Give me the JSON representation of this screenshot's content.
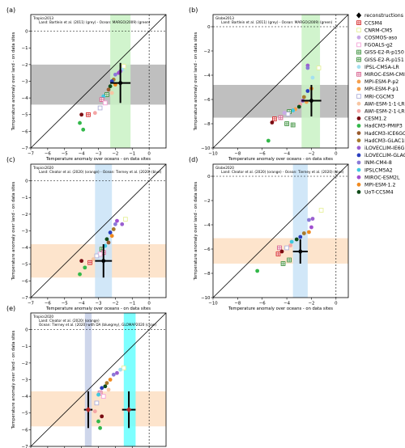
{
  "figure": {
    "background": "#ffffff"
  },
  "chart_data": [
    {
      "type": "scatter",
      "panel_label": "(a)",
      "title": "Tropics2013",
      "subtitle": "Land: Bartlein et al. (2011) (grey) - Ocean: MARGO(2009) (green)",
      "xlabel": "Temperature anomaly over oceans - on data sites",
      "ylabel": "Temperature anomaly over land - on data sites",
      "xlim": [
        -7,
        1
      ],
      "ylim": [
        -7,
        1
      ],
      "xticks": [
        -7,
        -6,
        -5,
        -4,
        -3,
        -2,
        -1,
        0
      ],
      "yticks": [
        -7,
        -6,
        -5,
        -4,
        -3,
        -2,
        -1,
        0
      ],
      "bands": [
        {
          "axis": "y",
          "from": -4.4,
          "to": -2.0,
          "color": "#bfbfbf"
        },
        {
          "axis": "x",
          "from": -2.3,
          "to": -1.1,
          "color": "#c9f2c4"
        }
      ],
      "reconstructions": [
        {
          "x": -1.7,
          "y": -3.1,
          "xerr": 0.6,
          "yerr": 1.2
        }
      ],
      "points": [
        {
          "x": -1.5,
          "y": -2.1,
          "series": "CNRM-CM5"
        },
        {
          "x": -1.6,
          "y": -2.3,
          "series": "IPSL-CM5A-LR"
        },
        {
          "x": -1.7,
          "y": -2.4,
          "series": "iLOVECLIM-IE6G"
        },
        {
          "x": -2.0,
          "y": -2.6,
          "series": "INM-CM4-8"
        },
        {
          "x": -1.8,
          "y": -2.5,
          "series": "MIROC-ESM2L"
        },
        {
          "x": -2.1,
          "y": -2.9,
          "series": "HadCM3-GLAC1D"
        },
        {
          "x": -2.2,
          "y": -3.0,
          "series": "iLOVECLIM-GLAC1D"
        },
        {
          "x": -2.3,
          "y": -3.3,
          "series": "UoT-CCSM4"
        },
        {
          "x": -2.0,
          "y": -3.2,
          "series": "MPI-ESM-1.2"
        },
        {
          "x": -2.4,
          "y": -3.5,
          "series": "HadCM3-ICE6GC"
        },
        {
          "x": -2.2,
          "y": -3.7,
          "series": "AWI-ESM-1-1-LR"
        },
        {
          "x": -2.5,
          "y": -3.8,
          "series": "GISS-E2-R-p151"
        },
        {
          "x": -2.7,
          "y": -3.9,
          "series": "IPSLCM5A2"
        },
        {
          "x": -2.8,
          "y": -4.1,
          "series": "MIROC-ESM-CMIP5"
        },
        {
          "x": -2.6,
          "y": -4.3,
          "series": "FGOALS-g2"
        },
        {
          "x": -2.9,
          "y": -4.6,
          "series": "MRI-CGCM3"
        },
        {
          "x": -3.2,
          "y": -4.9,
          "series": "AWI-ESM-2-1-LR"
        },
        {
          "x": -3.6,
          "y": -5.0,
          "series": "CCSM4"
        },
        {
          "x": -4.0,
          "y": -5.0,
          "series": "CESM1.2"
        },
        {
          "x": -4.1,
          "y": -5.5,
          "series": "HadCM3-PMIP3"
        },
        {
          "x": -3.9,
          "y": -5.9,
          "series": "HadCM3-PMIP3"
        }
      ]
    },
    {
      "type": "scatter",
      "panel_label": "(b)",
      "title": "Globe2013",
      "subtitle": "Land: Bartlein et al. (2011) (grey) - Ocean: MARGO(2009) (green)",
      "xlabel": "Temperature anomaly over oceans - on data sites",
      "ylabel": "Temperature anomaly over land - on data sites",
      "xlim": [
        -10,
        1
      ],
      "ylim": [
        -10,
        1
      ],
      "xticks": [
        -10,
        -8,
        -6,
        -4,
        -2,
        0
      ],
      "yticks": [
        -10,
        -8,
        -6,
        -4,
        -2,
        0
      ],
      "bands": [
        {
          "axis": "y",
          "from": -7.5,
          "to": -4.8,
          "color": "#bfbfbf"
        },
        {
          "axis": "x",
          "from": -2.8,
          "to": -1.3,
          "color": "#c9f2c4"
        }
      ],
      "reconstructions": [
        {
          "x": -2.0,
          "y": -6.1,
          "xerr": 0.8,
          "yerr": 1.3
        }
      ],
      "points": [
        {
          "x": -1.4,
          "y": -3.4,
          "series": "CNRM-CM5"
        },
        {
          "x": -2.3,
          "y": -3.2,
          "series": "iLOVECLIM-IE6G"
        },
        {
          "x": -2.3,
          "y": -3.4,
          "series": "INM-CM4-8"
        },
        {
          "x": -1.9,
          "y": -4.2,
          "series": "IPSL-CM5A-LR"
        },
        {
          "x": -2.0,
          "y": -5.1,
          "series": "MPI-ESM-1.2"
        },
        {
          "x": -2.3,
          "y": -5.3,
          "series": "iLOVECLIM-GLAC1D"
        },
        {
          "x": -2.6,
          "y": -5.8,
          "series": "HadCM3-GLAC1D"
        },
        {
          "x": -2.7,
          "y": -6.1,
          "series": "MIROC-ESM2L"
        },
        {
          "x": -2.4,
          "y": -6.2,
          "series": "MPI-ESM-P-p2"
        },
        {
          "x": -2.9,
          "y": -6.4,
          "series": "AWI-ESM-2-1-LR"
        },
        {
          "x": -3.0,
          "y": -6.6,
          "series": "UoT-CCSM4"
        },
        {
          "x": -3.3,
          "y": -6.8,
          "series": "MPI-ESM-P-p1"
        },
        {
          "x": -3.5,
          "y": -6.9,
          "series": "IPSLCM5A2"
        },
        {
          "x": -3.8,
          "y": -7.0,
          "series": "GISS-E2-R-p150"
        },
        {
          "x": -3.9,
          "y": -7.2,
          "series": "MRI-CGCM3"
        },
        {
          "x": -4.2,
          "y": -7.1,
          "series": "COSMOS-aso"
        },
        {
          "x": -4.5,
          "y": -7.5,
          "series": "MIROC-ESM-CMIP5"
        },
        {
          "x": -5.0,
          "y": -7.6,
          "series": "CCSM4"
        },
        {
          "x": -5.2,
          "y": -7.9,
          "series": "CESM1.2"
        },
        {
          "x": -4.0,
          "y": -8.0,
          "series": "GISS-E2-R-p151"
        },
        {
          "x": -3.5,
          "y": -8.1,
          "series": "GISS-E2-R-p150"
        },
        {
          "x": -5.5,
          "y": -9.4,
          "series": "HadCM3-PMIP3"
        }
      ]
    },
    {
      "type": "scatter",
      "panel_label": "(c)",
      "title": "Tropics2020",
      "subtitle": "Land: Cleator et al. (2020) (orange) - Ocean: Tierney et al. (2020) (blue)",
      "xlabel": "Temperature anomaly over oceans - on data sites",
      "ylabel": "Temperature anomaly over land - on data sites",
      "xlim": [
        -7,
        1
      ],
      "ylim": [
        -7,
        1
      ],
      "xticks": [
        -7,
        -6,
        -5,
        -4,
        -3,
        -2,
        -1,
        0
      ],
      "yticks": [
        -7,
        -6,
        -5,
        -4,
        -3,
        -2,
        -1,
        0
      ],
      "bands": [
        {
          "axis": "y",
          "from": -5.8,
          "to": -3.8,
          "color": "#fde4cc"
        },
        {
          "axis": "x",
          "from": -3.2,
          "to": -2.2,
          "color": "#c9e3f7"
        }
      ],
      "reconstructions": [
        {
          "x": -2.7,
          "y": -4.8,
          "xerr": 0.5,
          "yerr": 1.0
        }
      ],
      "points": [
        {
          "x": -1.4,
          "y": -2.3,
          "series": "CNRM-CM5"
        },
        {
          "x": -1.6,
          "y": -2.6,
          "series": "iLOVECLIM-IE6G"
        },
        {
          "x": -1.9,
          "y": -2.4,
          "series": "MIROC-ESM2L"
        },
        {
          "x": -2.0,
          "y": -2.6,
          "series": "INM-CM4-8"
        },
        {
          "x": -2.1,
          "y": -2.9,
          "series": "HadCM3-GLAC1D"
        },
        {
          "x": -2.3,
          "y": -3.1,
          "series": "iLOVECLIM-GLAC1D"
        },
        {
          "x": -2.2,
          "y": -3.3,
          "series": "MPI-ESM-1.2"
        },
        {
          "x": -2.5,
          "y": -3.5,
          "series": "UoT-CCSM4"
        },
        {
          "x": -2.4,
          "y": -3.7,
          "series": "HadCM3-ICE6GC"
        },
        {
          "x": -2.6,
          "y": -3.9,
          "series": "IPSLCM5A2"
        },
        {
          "x": -2.8,
          "y": -4.1,
          "series": "GISS-E2-R-p151"
        },
        {
          "x": -2.7,
          "y": -4.3,
          "series": "MIROC-ESM-CMIP5"
        },
        {
          "x": -2.9,
          "y": -4.4,
          "series": "FGOALS-g2"
        },
        {
          "x": -3.1,
          "y": -4.5,
          "series": "MRI-CGCM3"
        },
        {
          "x": -3.3,
          "y": -4.7,
          "series": "AWI-ESM-1-1-LR"
        },
        {
          "x": -3.5,
          "y": -4.9,
          "series": "CCSM4"
        },
        {
          "x": -4.0,
          "y": -4.8,
          "series": "CESM1.2"
        },
        {
          "x": -3.8,
          "y": -5.2,
          "series": "HadCM3-PMIP3"
        },
        {
          "x": -4.1,
          "y": -5.6,
          "series": "HadCM3-PMIP3"
        }
      ]
    },
    {
      "type": "scatter",
      "panel_label": "(d)",
      "title": "Globe2020",
      "subtitle": "Land: Cleator et al. (2020) (orange) - Ocean: Tierney et al. (2020) (blue)",
      "xlabel": "Temperature anomaly over oceans - on data sites",
      "ylabel": "Temperature anomaly over land - on data sites",
      "xlim": [
        -10,
        1
      ],
      "ylim": [
        -10,
        1
      ],
      "xticks": [
        -10,
        -8,
        -6,
        -4,
        -2,
        0
      ],
      "yticks": [
        -10,
        -8,
        -6,
        -4,
        -2,
        0
      ],
      "bands": [
        {
          "axis": "y",
          "from": -7.2,
          "to": -5.1,
          "color": "#fde4cc"
        },
        {
          "axis": "x",
          "from": -3.5,
          "to": -2.3,
          "color": "#c9e3f7"
        }
      ],
      "reconstructions": [
        {
          "x": -2.9,
          "y": -6.2,
          "xerr": 0.6,
          "yerr": 1.0
        }
      ],
      "points": [
        {
          "x": -1.2,
          "y": -2.8,
          "series": "CNRM-CM5"
        },
        {
          "x": -1.9,
          "y": -3.5,
          "series": "iLOVECLIM-IE6G"
        },
        {
          "x": -2.2,
          "y": -3.6,
          "series": "INM-CM4-8"
        },
        {
          "x": -2.0,
          "y": -4.2,
          "series": "MIROC-ESM2L"
        },
        {
          "x": -2.2,
          "y": -4.6,
          "series": "MPI-ESM-1.2"
        },
        {
          "x": -2.6,
          "y": -4.7,
          "series": "HadCM3-GLAC1D"
        },
        {
          "x": -2.9,
          "y": -5.0,
          "series": "iLOVECLIM-GLAC1D"
        },
        {
          "x": -3.2,
          "y": -5.2,
          "series": "UoT-CCSM4"
        },
        {
          "x": -3.6,
          "y": -5.4,
          "series": "IPSLCM5A2"
        },
        {
          "x": -3.7,
          "y": -5.7,
          "series": "AWI-ESM-2-1-LR"
        },
        {
          "x": -4.0,
          "y": -5.9,
          "series": "MRI-CGCM3"
        },
        {
          "x": -4.6,
          "y": -5.9,
          "series": "MIROC-ESM-CMIP5"
        },
        {
          "x": -4.4,
          "y": -6.2,
          "series": "CESM1.2"
        },
        {
          "x": -4.7,
          "y": -6.4,
          "series": "CCSM4"
        },
        {
          "x": -3.8,
          "y": -6.9,
          "series": "GISS-E2-R-p151"
        },
        {
          "x": -4.3,
          "y": -7.2,
          "series": "GISS-E2-R-p150"
        },
        {
          "x": -6.4,
          "y": -7.8,
          "series": "HadCM3-PMIP3"
        }
      ]
    },
    {
      "type": "scatter",
      "panel_label": "(e)",
      "title": "Tropics2020",
      "subtitle": "Land: Cleator et al. (2020) (orange)",
      "subtitle2": "Ocean:  Tierney et al. (2020) with DA (bluegrey), GLOMAP2020 (cyan)",
      "xlabel": "Temperature anomaly over oceans - on data sites",
      "ylabel": "Temperature anomaly over land - on data sites",
      "xlim": [
        -7,
        1
      ],
      "ylim": [
        -7,
        1
      ],
      "xticks": [
        -7,
        -6,
        -5,
        -4,
        -3,
        -2,
        -1,
        0
      ],
      "yticks": [
        -7,
        -6,
        -5,
        -4,
        -3,
        -2,
        -1,
        0
      ],
      "bands": [
        {
          "axis": "y",
          "from": -5.8,
          "to": -3.7,
          "color": "#fde4cc"
        },
        {
          "axis": "x",
          "from": -3.8,
          "to": -3.4,
          "color": "#c5cfe8"
        },
        {
          "axis": "x",
          "from": -1.5,
          "to": -0.8,
          "color": "#66ffff"
        }
      ],
      "reconstructions": [
        {
          "x": -3.6,
          "y": -4.8,
          "xerr": 0.25,
          "yerr": 1.1
        },
        {
          "x": -1.2,
          "y": -4.8,
          "xerr": 0.4,
          "yerr": 1.1
        }
      ],
      "points": [
        {
          "x": -1.5,
          "y": -2.3,
          "series": "CNRM-CM5"
        },
        {
          "x": -1.7,
          "y": -2.4,
          "series": "IPSL-CM5A-LR"
        },
        {
          "x": -1.9,
          "y": -2.6,
          "series": "iLOVECLIM-IE6G"
        },
        {
          "x": -2.1,
          "y": -2.7,
          "series": "INM-CM4-8"
        },
        {
          "x": -2.3,
          "y": -3.0,
          "series": "MPI-ESM-1.2"
        },
        {
          "x": -2.5,
          "y": -3.2,
          "series": "HadCM3-GLAC1D"
        },
        {
          "x": -2.6,
          "y": -3.4,
          "series": "UoT-CCSM4"
        },
        {
          "x": -2.8,
          "y": -3.5,
          "series": "iLOVECLIM-GLAC1D"
        },
        {
          "x": -2.4,
          "y": -3.6,
          "series": "AWI-ESM-1-1-LR"
        },
        {
          "x": -2.9,
          "y": -3.8,
          "series": "MIROC-ESM-CMIP5"
        },
        {
          "x": -3.0,
          "y": -3.9,
          "series": "IPSLCM5A2"
        },
        {
          "x": -2.7,
          "y": -4.0,
          "series": "FGOALS-g2"
        },
        {
          "x": -3.1,
          "y": -4.4,
          "series": "MRI-CGCM3"
        },
        {
          "x": -3.2,
          "y": -4.9,
          "series": "AWI-ESM-2-1-LR"
        },
        {
          "x": -2.8,
          "y": -5.2,
          "series": "CESM1.2"
        },
        {
          "x": -3.0,
          "y": -5.5,
          "series": "HadCM3-PMIP3"
        },
        {
          "x": -2.9,
          "y": -5.9,
          "series": "HadCM3-PMIP3"
        }
      ]
    }
  ],
  "legend": {
    "placement": "right",
    "entries": [
      {
        "label": "reconstructions",
        "marker": "diamond",
        "color": "#000000"
      },
      {
        "label": "CCSM4",
        "marker": "square-plus",
        "color": "#d62728"
      },
      {
        "label": "CNRM-CM5",
        "marker": "square",
        "color": "#e6f09a"
      },
      {
        "label": "COSMOS-aso",
        "marker": "circle",
        "color": "#c8a9e6"
      },
      {
        "label": "FGOALS-g2",
        "marker": "square",
        "color": "#f5a3d8"
      },
      {
        "label": "GISS-E2-R-p150",
        "marker": "square-plus",
        "color": "#3a8f3a"
      },
      {
        "label": "GISS-E2-R-p151",
        "marker": "square-plus",
        "color": "#3a8f3a"
      },
      {
        "label": "IPSL-CM5A-LR",
        "marker": "circle",
        "color": "#a3e0f0"
      },
      {
        "label": "MIROC-ESM-CMIP5",
        "marker": "square-plus",
        "color": "#d65b8a"
      },
      {
        "label": "MPI-ESM-P-p2",
        "marker": "circle",
        "color": "#f6a04d"
      },
      {
        "label": "MPI-ESM-P-p1",
        "marker": "circle",
        "color": "#f6a04d"
      },
      {
        "label": "MRI-CGCM3",
        "marker": "square",
        "color": "#b0b0d8"
      },
      {
        "label": "AWI-ESM-1-1-LR",
        "marker": "circle",
        "color": "#f7c6a3"
      },
      {
        "label": "AWI-ESM-2-1-LR",
        "marker": "circle",
        "color": "#f4a6a6"
      },
      {
        "label": "CESM1.2",
        "marker": "circle",
        "color": "#7a0c12"
      },
      {
        "label": "HadCM3-PMIP3",
        "marker": "circle",
        "color": "#33b84a"
      },
      {
        "label": "HadCM3-ICE6GC",
        "marker": "circle",
        "color": "#9a5a2c"
      },
      {
        "label": "HadCM3-GLAC1D",
        "marker": "circle",
        "color": "#a87a2c"
      },
      {
        "label": "iLOVECLIM-IE6G",
        "marker": "circle",
        "color": "#9a5fd0"
      },
      {
        "label": "iLOVECLIM-GLAC1D",
        "marker": "circle",
        "color": "#2a3fbf"
      },
      {
        "label": "INM-CM4-8",
        "marker": "circle",
        "color": "#8a7ad8"
      },
      {
        "label": "IPSLCM5A2",
        "marker": "circle",
        "color": "#40c8e0"
      },
      {
        "label": "MIROC-ESM2L",
        "marker": "circle",
        "color": "#a04fd0"
      },
      {
        "label": "MPI-ESM-1.2",
        "marker": "circle",
        "color": "#f08a20"
      },
      {
        "label": "UoT-CCSM4",
        "marker": "circle",
        "color": "#0f4a18"
      }
    ]
  }
}
